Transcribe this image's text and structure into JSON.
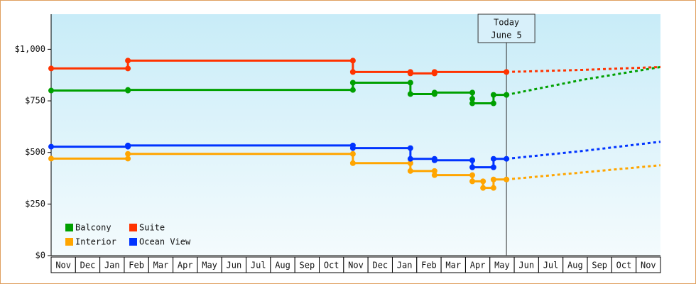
{
  "chart_data": {
    "type": "line",
    "categories": [
      "Nov",
      "Dec",
      "Jan",
      "Feb",
      "Mar",
      "Apr",
      "May",
      "Jun",
      "Jul",
      "Aug",
      "Sep",
      "Oct",
      "Nov",
      "Dec",
      "Jan",
      "Feb",
      "Mar",
      "Apr",
      "May",
      "Jun",
      "Jul",
      "Aug",
      "Sep",
      "Oct",
      "Nov"
    ],
    "xlim": [
      0,
      25
    ],
    "ylim": [
      0,
      1170
    ],
    "yticks": [
      {
        "value": 0,
        "label": "$0"
      },
      {
        "value": 250,
        "label": "$250"
      },
      {
        "value": 500,
        "label": "$500"
      },
      {
        "value": 750,
        "label": "$750"
      },
      {
        "value": 1000,
        "label": "$1,000"
      }
    ],
    "annotation": {
      "lines": [
        "Today",
        "June 5"
      ],
      "x": 18.68
    },
    "legend": "lower left",
    "series": [
      {
        "name": "Balcony",
        "color": "#00a000",
        "x": [
          0,
          3.15,
          3.15,
          12.38,
          12.38,
          14.74,
          14.74,
          15.73,
          15.73,
          17.28,
          17.28,
          17.28,
          18.15,
          18.15,
          18.68,
          21.8,
          25
        ],
        "values": [
          800,
          800,
          803,
          803,
          838,
          838,
          783,
          783,
          790,
          790,
          760,
          738,
          738,
          779,
          779,
          852,
          914
        ]
      },
      {
        "name": "Suite",
        "color": "#ff3300",
        "x": [
          0,
          3.15,
          3.15,
          12.38,
          12.38,
          14.74,
          14.74,
          15.73,
          15.73,
          18.68,
          21.8,
          25
        ],
        "values": [
          907,
          907,
          945,
          945,
          890,
          890,
          883,
          883,
          890,
          890,
          900,
          914
        ]
      },
      {
        "name": "Interior",
        "color": "#ffa500",
        "x": [
          0,
          3.15,
          3.15,
          12.38,
          12.38,
          14.74,
          14.74,
          15.73,
          15.73,
          17.28,
          17.28,
          17.72,
          17.72,
          18.15,
          18.15,
          18.68,
          21.8,
          25
        ],
        "values": [
          470,
          470,
          493,
          493,
          448,
          448,
          410,
          410,
          390,
          390,
          360,
          360,
          328,
          328,
          369,
          369,
          403,
          438
        ]
      },
      {
        "name": "Ocean View",
        "color": "#0033ff",
        "x": [
          0,
          3.15,
          3.15,
          12.38,
          12.38,
          14.74,
          14.74,
          15.73,
          15.73,
          17.28,
          17.28,
          18.15,
          18.15,
          18.68,
          21.8,
          25
        ],
        "values": [
          528,
          528,
          534,
          534,
          521,
          521,
          469,
          469,
          462,
          462,
          428,
          428,
          469,
          469,
          507,
          552
        ]
      }
    ]
  }
}
